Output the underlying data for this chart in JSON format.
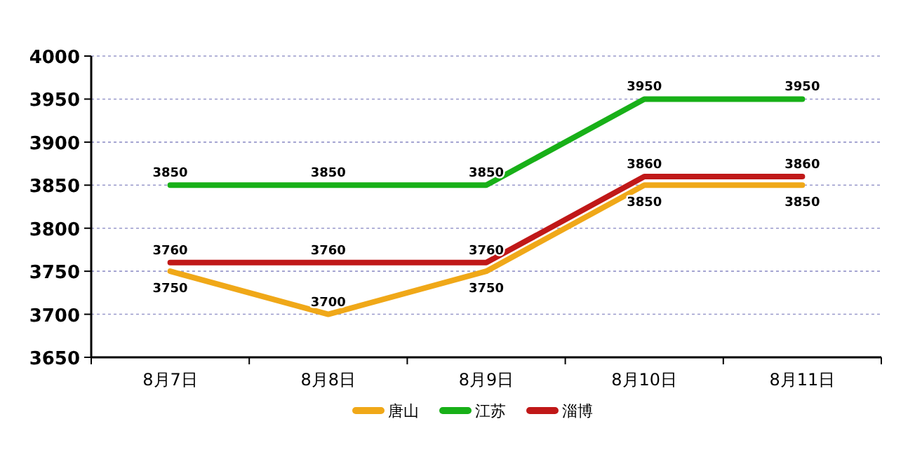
{
  "chart_data": {
    "type": "line",
    "categories": [
      "8月7日",
      "8月8日",
      "8月9日",
      "8月10日",
      "8月11日"
    ],
    "series": [
      {
        "name": "唐山",
        "color": "#f0a818",
        "values": [
          3750,
          3700,
          3750,
          3850,
          3850
        ]
      },
      {
        "name": "江苏",
        "color": "#18b018",
        "values": [
          3850,
          3850,
          3850,
          3950,
          3950
        ]
      },
      {
        "name": "淄博",
        "color": "#c01818",
        "values": [
          3760,
          3760,
          3760,
          3860,
          3860
        ]
      }
    ],
    "ylim": [
      3650,
      4000
    ],
    "yticks": [
      3650,
      3700,
      3750,
      3800,
      3850,
      3900,
      3950,
      4000
    ],
    "grid": "y",
    "legend": "bottom",
    "data_labels": true,
    "marker": "none",
    "line_style": "solid"
  }
}
